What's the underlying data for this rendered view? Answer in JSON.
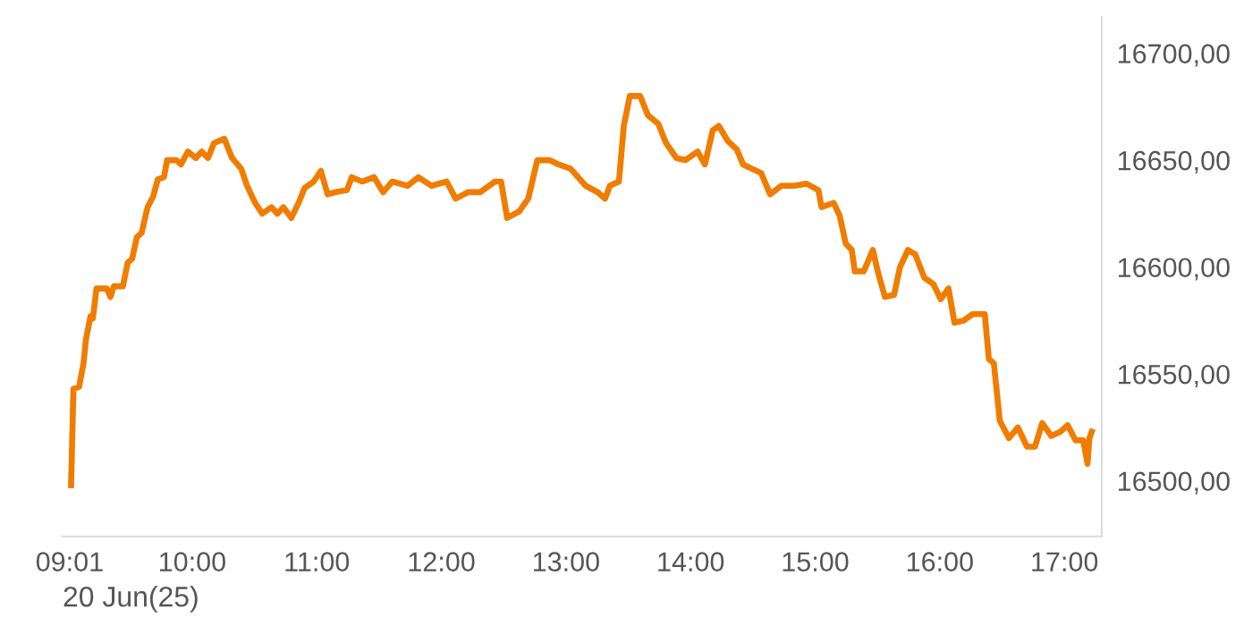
{
  "chart_data": {
    "type": "line",
    "xlabel": "20 Jun(25)",
    "x": [
      9.028,
      9.047,
      9.092,
      9.128,
      9.147,
      9.184,
      9.203,
      9.232,
      9.315,
      9.344,
      9.371,
      9.444,
      9.482,
      9.519,
      9.556,
      9.594,
      9.642,
      9.687,
      9.724,
      9.773,
      9.799,
      9.873,
      9.91,
      9.966,
      10.029,
      10.077,
      10.127,
      10.175,
      10.258,
      10.32,
      10.393,
      10.441,
      10.505,
      10.563,
      10.636,
      10.684,
      10.732,
      10.796,
      10.854,
      10.902,
      10.975,
      11.033,
      11.087,
      11.146,
      11.242,
      11.281,
      11.364,
      11.46,
      11.533,
      11.606,
      11.728,
      11.815,
      11.921,
      12.042,
      12.115,
      12.212,
      12.31,
      12.431,
      12.479,
      12.528,
      12.624,
      12.697,
      12.77,
      12.867,
      12.94,
      13.037,
      13.158,
      13.255,
      13.314,
      13.352,
      13.425,
      13.464,
      13.512,
      13.595,
      13.658,
      13.741,
      13.803,
      13.886,
      13.959,
      14.057,
      14.115,
      14.178,
      14.226,
      14.298,
      14.371,
      14.421,
      14.493,
      14.566,
      14.639,
      14.726,
      14.833,
      14.93,
      15.026,
      15.051,
      15.148,
      15.197,
      15.245,
      15.294,
      15.318,
      15.39,
      15.463,
      15.502,
      15.56,
      15.633,
      15.681,
      15.745,
      15.803,
      15.876,
      15.949,
      16.007,
      16.07,
      16.118,
      16.191,
      16.263,
      16.361,
      16.394,
      16.434,
      16.482,
      16.555,
      16.627,
      16.7,
      16.764,
      16.822,
      16.895,
      16.968,
      17.026,
      17.089,
      17.151,
      17.186,
      17.201,
      17.22
    ],
    "series": [
      {
        "color": "#f07c00",
        "values": [
          16498,
          16543,
          16544,
          16555,
          16566,
          16577,
          16576,
          16590,
          16590,
          16586,
          16591,
          16591,
          16602,
          16604,
          16614,
          16616,
          16628,
          16633,
          16641,
          16642,
          16650,
          16650,
          16648,
          16654,
          16651,
          16654,
          16651,
          16658,
          16660,
          16651,
          16646,
          16638,
          16630,
          16625,
          16628,
          16625,
          16628,
          16623,
          16630,
          16637,
          16640,
          16645,
          16634,
          16635,
          16636,
          16642,
          16640,
          16642,
          16635,
          16640,
          16638,
          16642,
          16638,
          16640,
          16632,
          16635,
          16635,
          16640,
          16640,
          16623,
          16626,
          16632,
          16650,
          16650,
          16648,
          16646,
          16638,
          16635,
          16632,
          16638,
          16640,
          16666,
          16680,
          16680,
          16671,
          16667,
          16658,
          16651,
          16650,
          16654,
          16648,
          16664,
          16666,
          16659,
          16655,
          16648,
          16646,
          16644,
          16634,
          16638,
          16638,
          16639,
          16636,
          16628,
          16630,
          16624,
          16611,
          16608,
          16598,
          16598,
          16608,
          16598,
          16586,
          16587,
          16600,
          16608,
          16606,
          16595,
          16592,
          16585,
          16590,
          16574,
          16575,
          16578,
          16578,
          16557,
          16555,
          16528,
          16520,
          16525,
          16516,
          16516,
          16527,
          16521,
          16523,
          16526,
          16519,
          16519,
          16508,
          16520,
          16523
        ]
      }
    ],
    "xlim": [
      8.96,
      17.3
    ],
    "ylim": [
      16474,
      16717
    ],
    "xticks": [
      {
        "value": 9.0167,
        "label": "09:01"
      },
      {
        "value": 10,
        "label": "10:00"
      },
      {
        "value": 11,
        "label": "11:00"
      },
      {
        "value": 12,
        "label": "12:00"
      },
      {
        "value": 13,
        "label": "13:00"
      },
      {
        "value": 14,
        "label": "14:00"
      },
      {
        "value": 15,
        "label": "15:00"
      },
      {
        "value": 16,
        "label": "16:00"
      },
      {
        "value": 17,
        "label": "17:00"
      }
    ],
    "yticks": [
      {
        "value": 16500,
        "label": "16500,00"
      },
      {
        "value": 16550,
        "label": "16550,00"
      },
      {
        "value": 16600,
        "label": "16600,00"
      },
      {
        "value": 16650,
        "label": "16650,00"
      },
      {
        "value": 16700,
        "label": "16700,00"
      }
    ],
    "grid": false,
    "legend": false,
    "marker": "none",
    "line_style": "solid"
  }
}
